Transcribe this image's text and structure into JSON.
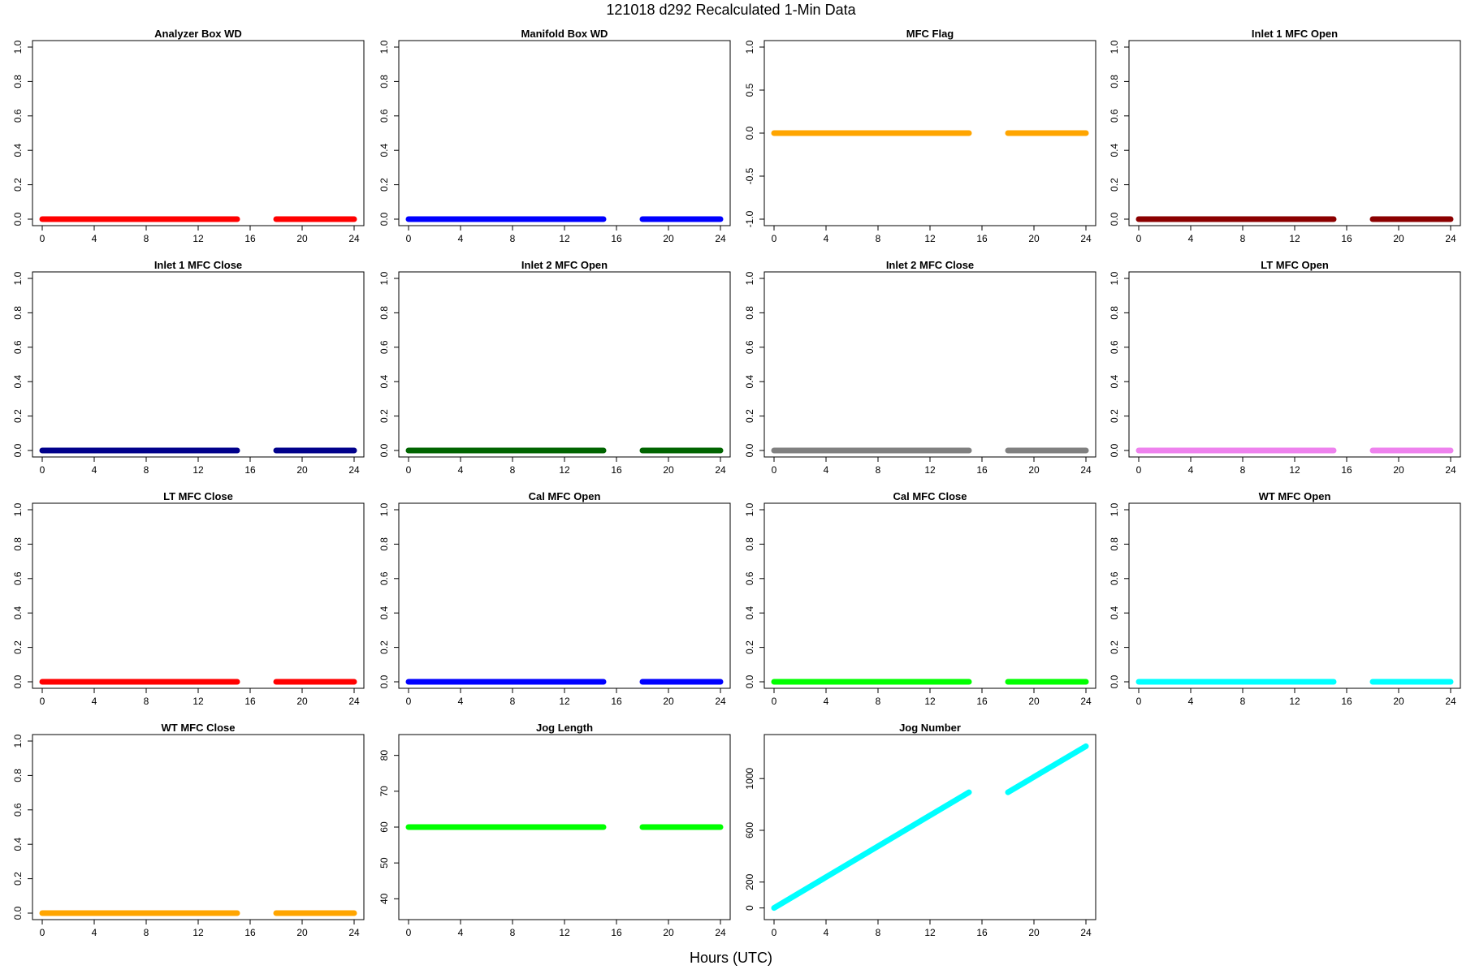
{
  "figure": {
    "title": "121018   d292   Recalculated 1-Min Data",
    "xlabel": "Hours (UTC)"
  },
  "chart_data": [
    {
      "type": "line",
      "title": "Analyzer Box WD",
      "color": "#ff0000",
      "xlim": [
        0,
        24
      ],
      "ylim": [
        0,
        1
      ],
      "xticks": [
        0,
        4,
        8,
        12,
        16,
        20,
        24
      ],
      "yticks": [
        0,
        0.2,
        0.4,
        0.6,
        0.8,
        1
      ],
      "ytick_labels": [
        "0.0",
        "0.2",
        "0.4",
        "0.6",
        "0.8",
        "1.0"
      ],
      "series": [
        {
          "x": [
            0,
            15
          ],
          "y": [
            0,
            0
          ]
        },
        {
          "x": [
            18,
            24
          ],
          "y": [
            0,
            0
          ]
        }
      ]
    },
    {
      "type": "line",
      "title": "Manifold Box WD",
      "color": "#0000ff",
      "xlim": [
        0,
        24
      ],
      "ylim": [
        0,
        1
      ],
      "xticks": [
        0,
        4,
        8,
        12,
        16,
        20,
        24
      ],
      "yticks": [
        0,
        0.2,
        0.4,
        0.6,
        0.8,
        1
      ],
      "ytick_labels": [
        "0.0",
        "0.2",
        "0.4",
        "0.6",
        "0.8",
        "1.0"
      ],
      "series": [
        {
          "x": [
            0,
            15
          ],
          "y": [
            0,
            0
          ]
        },
        {
          "x": [
            18,
            24
          ],
          "y": [
            0,
            0
          ]
        }
      ]
    },
    {
      "type": "line",
      "title": "MFC Flag",
      "color": "#ffa500",
      "xlim": [
        0,
        24
      ],
      "ylim": [
        -1,
        1
      ],
      "xticks": [
        0,
        4,
        8,
        12,
        16,
        20,
        24
      ],
      "yticks": [
        -1,
        -0.5,
        0,
        0.5,
        1
      ],
      "ytick_labels": [
        "-1.0",
        "-0.5",
        "0.0",
        "0.5",
        "1.0"
      ],
      "series": [
        {
          "x": [
            0,
            15
          ],
          "y": [
            0,
            0
          ]
        },
        {
          "x": [
            18,
            24
          ],
          "y": [
            0,
            0
          ]
        }
      ]
    },
    {
      "type": "line",
      "title": "Inlet 1 MFC Open",
      "color": "#8b0000",
      "xlim": [
        0,
        24
      ],
      "ylim": [
        0,
        1
      ],
      "xticks": [
        0,
        4,
        8,
        12,
        16,
        20,
        24
      ],
      "yticks": [
        0,
        0.2,
        0.4,
        0.6,
        0.8,
        1
      ],
      "ytick_labels": [
        "0.0",
        "0.2",
        "0.4",
        "0.6",
        "0.8",
        "1.0"
      ],
      "series": [
        {
          "x": [
            0,
            15
          ],
          "y": [
            0,
            0
          ]
        },
        {
          "x": [
            18,
            24
          ],
          "y": [
            0,
            0
          ]
        }
      ]
    },
    {
      "type": "line",
      "title": "Inlet 1 MFC Close",
      "color": "#00008b",
      "xlim": [
        0,
        24
      ],
      "ylim": [
        0,
        1
      ],
      "xticks": [
        0,
        4,
        8,
        12,
        16,
        20,
        24
      ],
      "yticks": [
        0,
        0.2,
        0.4,
        0.6,
        0.8,
        1
      ],
      "ytick_labels": [
        "0.0",
        "0.2",
        "0.4",
        "0.6",
        "0.8",
        "1.0"
      ],
      "series": [
        {
          "x": [
            0,
            15
          ],
          "y": [
            0,
            0
          ]
        },
        {
          "x": [
            18,
            24
          ],
          "y": [
            0,
            0
          ]
        }
      ]
    },
    {
      "type": "line",
      "title": "Inlet 2 MFC Open",
      "color": "#006400",
      "xlim": [
        0,
        24
      ],
      "ylim": [
        0,
        1
      ],
      "xticks": [
        0,
        4,
        8,
        12,
        16,
        20,
        24
      ],
      "yticks": [
        0,
        0.2,
        0.4,
        0.6,
        0.8,
        1
      ],
      "ytick_labels": [
        "0.0",
        "0.2",
        "0.4",
        "0.6",
        "0.8",
        "1.0"
      ],
      "series": [
        {
          "x": [
            0,
            15
          ],
          "y": [
            0,
            0
          ]
        },
        {
          "x": [
            18,
            24
          ],
          "y": [
            0,
            0
          ]
        }
      ]
    },
    {
      "type": "line",
      "title": "Inlet 2 MFC Close",
      "color": "#808080",
      "xlim": [
        0,
        24
      ],
      "ylim": [
        0,
        1
      ],
      "xticks": [
        0,
        4,
        8,
        12,
        16,
        20,
        24
      ],
      "yticks": [
        0,
        0.2,
        0.4,
        0.6,
        0.8,
        1
      ],
      "ytick_labels": [
        "0.0",
        "0.2",
        "0.4",
        "0.6",
        "0.8",
        "1.0"
      ],
      "series": [
        {
          "x": [
            0,
            15
          ],
          "y": [
            0,
            0
          ]
        },
        {
          "x": [
            18,
            24
          ],
          "y": [
            0,
            0
          ]
        }
      ]
    },
    {
      "type": "line",
      "title": "LT MFC Open",
      "color": "#ee82ee",
      "xlim": [
        0,
        24
      ],
      "ylim": [
        0,
        1
      ],
      "xticks": [
        0,
        4,
        8,
        12,
        16,
        20,
        24
      ],
      "yticks": [
        0,
        0.2,
        0.4,
        0.6,
        0.8,
        1
      ],
      "ytick_labels": [
        "0.0",
        "0.2",
        "0.4",
        "0.6",
        "0.8",
        "1.0"
      ],
      "series": [
        {
          "x": [
            0,
            15
          ],
          "y": [
            0,
            0
          ]
        },
        {
          "x": [
            18,
            24
          ],
          "y": [
            0,
            0
          ]
        }
      ]
    },
    {
      "type": "line",
      "title": "LT MFC Close",
      "color": "#ff0000",
      "xlim": [
        0,
        24
      ],
      "ylim": [
        0,
        1
      ],
      "xticks": [
        0,
        4,
        8,
        12,
        16,
        20,
        24
      ],
      "yticks": [
        0,
        0.2,
        0.4,
        0.6,
        0.8,
        1
      ],
      "ytick_labels": [
        "0.0",
        "0.2",
        "0.4",
        "0.6",
        "0.8",
        "1.0"
      ],
      "series": [
        {
          "x": [
            0,
            15
          ],
          "y": [
            0,
            0
          ]
        },
        {
          "x": [
            18,
            24
          ],
          "y": [
            0,
            0
          ]
        }
      ]
    },
    {
      "type": "line",
      "title": "Cal MFC Open",
      "color": "#0000ff",
      "xlim": [
        0,
        24
      ],
      "ylim": [
        0,
        1
      ],
      "xticks": [
        0,
        4,
        8,
        12,
        16,
        20,
        24
      ],
      "yticks": [
        0,
        0.2,
        0.4,
        0.6,
        0.8,
        1
      ],
      "ytick_labels": [
        "0.0",
        "0.2",
        "0.4",
        "0.6",
        "0.8",
        "1.0"
      ],
      "series": [
        {
          "x": [
            0,
            15
          ],
          "y": [
            0,
            0
          ]
        },
        {
          "x": [
            18,
            24
          ],
          "y": [
            0,
            0
          ]
        }
      ]
    },
    {
      "type": "line",
      "title": "Cal MFC Close",
      "color": "#00ff00",
      "xlim": [
        0,
        24
      ],
      "ylim": [
        0,
        1
      ],
      "xticks": [
        0,
        4,
        8,
        12,
        16,
        20,
        24
      ],
      "yticks": [
        0,
        0.2,
        0.4,
        0.6,
        0.8,
        1
      ],
      "ytick_labels": [
        "0.0",
        "0.2",
        "0.4",
        "0.6",
        "0.8",
        "1.0"
      ],
      "series": [
        {
          "x": [
            0,
            15
          ],
          "y": [
            0,
            0
          ]
        },
        {
          "x": [
            18,
            24
          ],
          "y": [
            0,
            0
          ]
        }
      ]
    },
    {
      "type": "line",
      "title": "WT MFC Open",
      "color": "#00ffff",
      "xlim": [
        0,
        24
      ],
      "ylim": [
        0,
        1
      ],
      "xticks": [
        0,
        4,
        8,
        12,
        16,
        20,
        24
      ],
      "yticks": [
        0,
        0.2,
        0.4,
        0.6,
        0.8,
        1
      ],
      "ytick_labels": [
        "0.0",
        "0.2",
        "0.4",
        "0.6",
        "0.8",
        "1.0"
      ],
      "series": [
        {
          "x": [
            0,
            15
          ],
          "y": [
            0,
            0
          ]
        },
        {
          "x": [
            18,
            24
          ],
          "y": [
            0,
            0
          ]
        }
      ]
    },
    {
      "type": "line",
      "title": "WT MFC Close",
      "color": "#ffa500",
      "xlim": [
        0,
        24
      ],
      "ylim": [
        0,
        1
      ],
      "xticks": [
        0,
        4,
        8,
        12,
        16,
        20,
        24
      ],
      "yticks": [
        0,
        0.2,
        0.4,
        0.6,
        0.8,
        1
      ],
      "ytick_labels": [
        "0.0",
        "0.2",
        "0.4",
        "0.6",
        "0.8",
        "1.0"
      ],
      "series": [
        {
          "x": [
            0,
            15
          ],
          "y": [
            0,
            0
          ]
        },
        {
          "x": [
            18,
            24
          ],
          "y": [
            0,
            0
          ]
        }
      ]
    },
    {
      "type": "line",
      "title": "Jog Length",
      "color": "#00ff00",
      "xlim": [
        0,
        24
      ],
      "ylim": [
        36,
        84
      ],
      "xticks": [
        0,
        4,
        8,
        12,
        16,
        20,
        24
      ],
      "yticks": [
        40,
        50,
        60,
        70,
        80
      ],
      "ytick_labels": [
        "40",
        "50",
        "60",
        "70",
        "80"
      ],
      "series": [
        {
          "x": [
            0,
            15
          ],
          "y": [
            60,
            60
          ]
        },
        {
          "x": [
            18,
            24
          ],
          "y": [
            60,
            60
          ]
        }
      ]
    },
    {
      "type": "line",
      "title": "Jog Number",
      "color": "#00ffff",
      "xlim": [
        0,
        24
      ],
      "ylim": [
        -40,
        1290
      ],
      "xticks": [
        0,
        4,
        8,
        12,
        16,
        20,
        24
      ],
      "yticks": [
        0,
        200,
        600,
        1000
      ],
      "ytick_labels": [
        "0",
        "200",
        "600",
        "1000"
      ],
      "series": [
        {
          "x": [
            0,
            15
          ],
          "y": [
            0,
            894
          ]
        },
        {
          "x": [
            18,
            24
          ],
          "y": [
            894,
            1250
          ]
        }
      ]
    }
  ]
}
